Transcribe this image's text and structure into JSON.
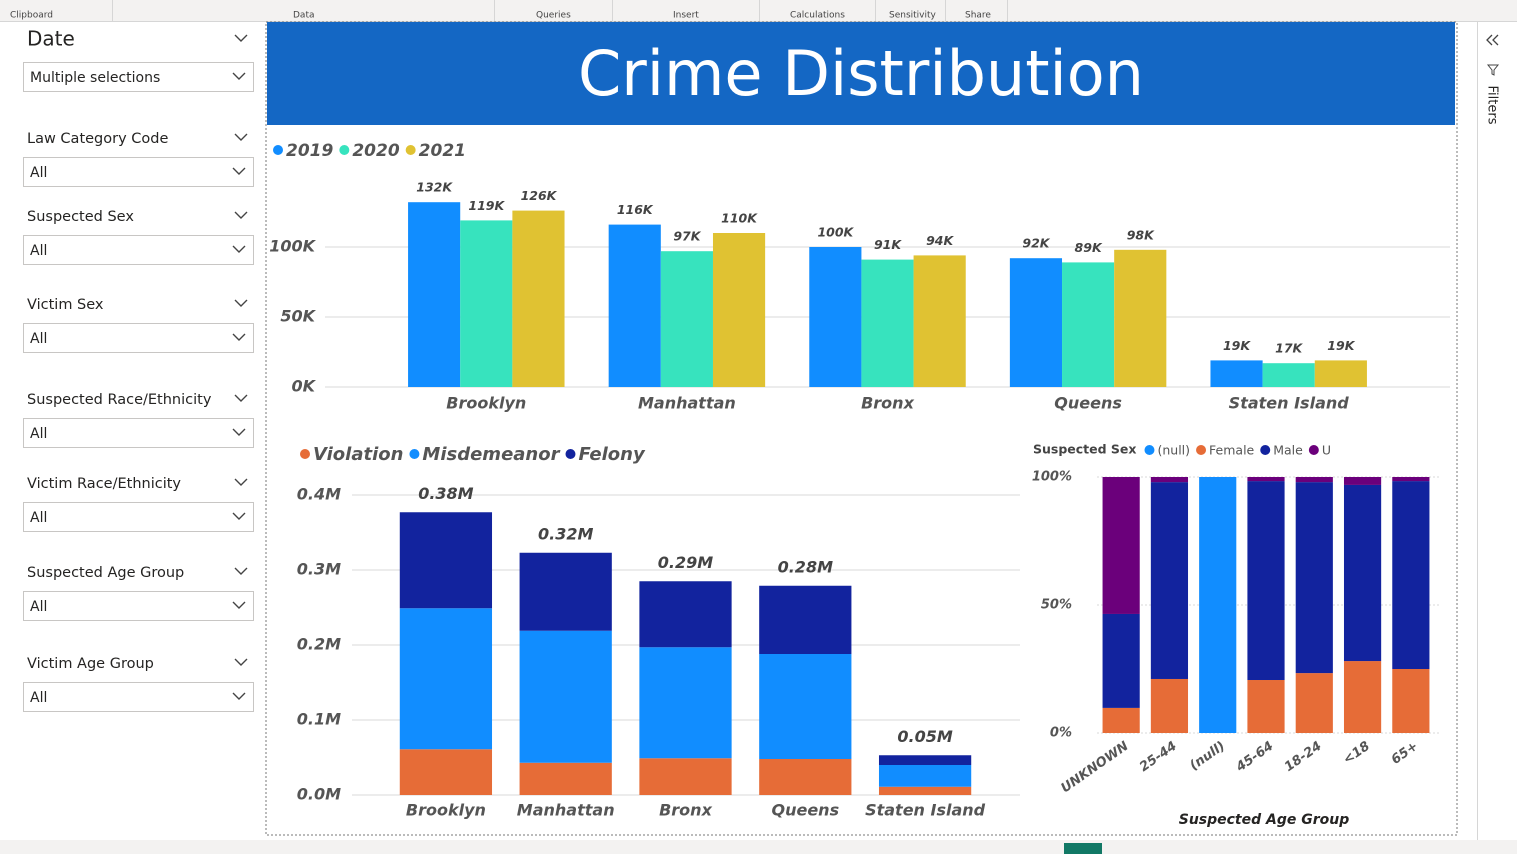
{
  "ribbon": [
    "Clipboard",
    "Data",
    "Queries",
    "Insert",
    "Calculations",
    "Sensitivity",
    "Share"
  ],
  "slicers": [
    {
      "label": "Date",
      "value": "Multiple selections"
    },
    {
      "label": "Law Category Code",
      "value": "All"
    },
    {
      "label": "Suspected Sex",
      "value": "All"
    },
    {
      "label": "Victim Sex",
      "value": "All"
    },
    {
      "label": "Suspected Race/Ethnicity",
      "value": "All"
    },
    {
      "label": "Victim Race/Ethnicity",
      "value": "All"
    },
    {
      "label": "Suspected Age Group",
      "value": "All"
    },
    {
      "label": "Victim Age Group",
      "value": "All"
    }
  ],
  "filters_pane": "Filters",
  "report_title": "Crime Distribution",
  "chart_data": [
    {
      "type": "bar",
      "stacked": false,
      "categories": [
        "Brooklyn",
        "Manhattan",
        "Bronx",
        "Queens",
        "Staten Island"
      ],
      "series": [
        {
          "name": "2019",
          "color": "#118DFF",
          "values": [
            132000,
            116000,
            100000,
            92000,
            19000
          ],
          "value_labels": [
            "132K",
            "116K",
            "100K",
            "92K",
            "19K"
          ]
        },
        {
          "name": "2020",
          "color": "#37E3BE",
          "values": [
            119000,
            97000,
            91000,
            89000,
            17000
          ],
          "value_labels": [
            "119K",
            "97K",
            "91K",
            "89K",
            "17K"
          ]
        },
        {
          "name": "2021",
          "color": "#E0C232",
          "values": [
            126000,
            110000,
            94000,
            98000,
            19000
          ],
          "value_labels": [
            "126K",
            "110K",
            "94K",
            "98K",
            "19K"
          ]
        }
      ],
      "ylim": [
        0,
        150000
      ],
      "yticks": [
        {
          "value": 0,
          "label": "0K"
        },
        {
          "value": 50000,
          "label": "50K"
        },
        {
          "value": 100000,
          "label": "100K"
        }
      ],
      "grid": true,
      "legend": "top-left"
    },
    {
      "type": "bar",
      "stacked": true,
      "categories": [
        "Brooklyn",
        "Manhattan",
        "Bronx",
        "Queens",
        "Staten Island"
      ],
      "series": [
        {
          "name": "Violation",
          "color": "#E66C37",
          "values": [
            61000,
            43000,
            49000,
            48000,
            11000
          ]
        },
        {
          "name": "Misdemeanor",
          "color": "#118DFF",
          "values": [
            188000,
            176000,
            148000,
            140000,
            29000
          ]
        },
        {
          "name": "Felony",
          "color": "#12239E",
          "values": [
            128000,
            104000,
            88000,
            91000,
            13000
          ]
        }
      ],
      "totals": [
        377000,
        323000,
        285000,
        279000,
        53000
      ],
      "total_labels": [
        "0.38M",
        "0.32M",
        "0.29M",
        "0.28M",
        "0.05M"
      ],
      "ylim": [
        0,
        400000
      ],
      "yticks": [
        {
          "value": 0,
          "label": "0.0M"
        },
        {
          "value": 100000,
          "label": "0.1M"
        },
        {
          "value": 200000,
          "label": "0.2M"
        },
        {
          "value": 300000,
          "label": "0.3M"
        },
        {
          "value": 400000,
          "label": "0.4M"
        }
      ],
      "grid": true,
      "legend": "top-left"
    },
    {
      "type": "bar",
      "stacked": true,
      "legend_title": "Suspected Sex",
      "x_label": "Suspected Age Group",
      "categories": [
        "UNKNOWN",
        "25-44",
        "(null)",
        "45-64",
        "18-24",
        "<18",
        "65+"
      ],
      "series": [
        {
          "name": "(null)",
          "color": "#118DFF",
          "values": [
            0,
            0,
            100,
            0,
            0,
            0,
            0
          ]
        },
        {
          "name": "Female",
          "color": "#E66C37",
          "values": [
            9.8,
            21.1,
            0,
            20.7,
            23.4,
            28.1,
            25
          ]
        },
        {
          "name": "Male",
          "color": "#12239E",
          "values": [
            36.7,
            76.9,
            0,
            77.7,
            74.6,
            68.8,
            73.4
          ]
        },
        {
          "name": "U",
          "color": "#6B007B",
          "values": [
            53.5,
            2,
            0,
            1.6,
            2,
            3.1,
            1.6
          ]
        }
      ],
      "ylim": [
        0,
        100
      ],
      "yticks": [
        {
          "value": 0,
          "label": "0%"
        },
        {
          "value": 50,
          "label": "50%"
        },
        {
          "value": 100,
          "label": "100%"
        }
      ],
      "grid": true,
      "legend": "top-left"
    }
  ]
}
